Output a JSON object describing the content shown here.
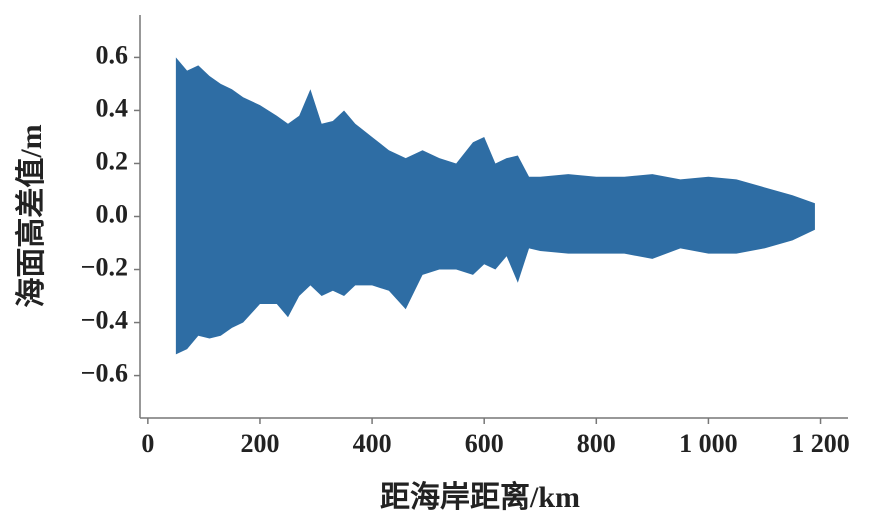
{
  "chart_data": {
    "type": "range",
    "x_label": "距海岸距离/km",
    "y_label": "海面高差值/m",
    "x": [
      50,
      70,
      90,
      110,
      130,
      150,
      170,
      200,
      230,
      250,
      270,
      290,
      310,
      330,
      350,
      370,
      400,
      430,
      460,
      490,
      520,
      550,
      580,
      600,
      620,
      640,
      660,
      680,
      700,
      750,
      800,
      850,
      900,
      950,
      1000,
      1050,
      1100,
      1150,
      1190
    ],
    "high": [
      0.6,
      0.55,
      0.57,
      0.53,
      0.5,
      0.48,
      0.45,
      0.42,
      0.38,
      0.35,
      0.38,
      0.48,
      0.35,
      0.36,
      0.4,
      0.35,
      0.3,
      0.25,
      0.22,
      0.25,
      0.22,
      0.2,
      0.28,
      0.3,
      0.2,
      0.22,
      0.23,
      0.15,
      0.15,
      0.16,
      0.15,
      0.15,
      0.16,
      0.14,
      0.15,
      0.14,
      0.11,
      0.08,
      0.05
    ],
    "low": [
      -0.52,
      -0.5,
      -0.45,
      -0.46,
      -0.45,
      -0.42,
      -0.4,
      -0.33,
      -0.33,
      -0.38,
      -0.3,
      -0.26,
      -0.3,
      -0.28,
      -0.3,
      -0.26,
      -0.26,
      -0.28,
      -0.35,
      -0.22,
      -0.2,
      -0.2,
      -0.22,
      -0.18,
      -0.2,
      -0.15,
      -0.25,
      -0.12,
      -0.13,
      -0.14,
      -0.14,
      -0.14,
      -0.16,
      -0.12,
      -0.14,
      -0.14,
      -0.12,
      -0.09,
      -0.05
    ],
    "color": "#2e6da4",
    "xlim": [
      -14,
      1249
    ],
    "xticks": [
      0,
      200,
      400,
      600,
      800,
      {
        "value": 1000,
        "label": "1 000"
      },
      {
        "value": 1200,
        "label": "1 200"
      }
    ],
    "ylim": [
      -0.76,
      0.76
    ],
    "yticks": [
      {
        "value": -0.6,
        "label": "−0.6"
      },
      {
        "value": -0.4,
        "label": "−0.4"
      },
      {
        "value": -0.2,
        "label": "−0.2"
      },
      {
        "value": 0,
        "label": "0.0"
      },
      0.2,
      0.4,
      0.6
    ]
  }
}
